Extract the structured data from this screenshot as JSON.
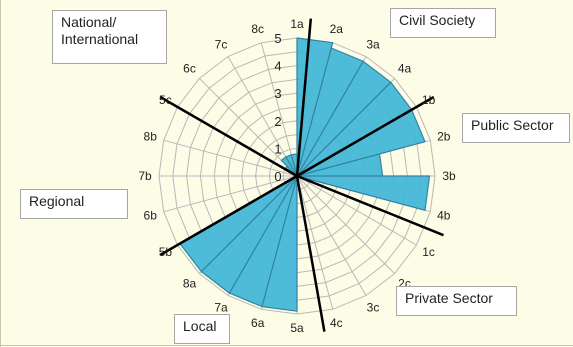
{
  "chart_data": {
    "type": "radar",
    "categories": [
      "1a",
      "2a",
      "3a",
      "4a",
      "1b",
      "2b",
      "3b",
      "4b",
      "1c",
      "2c",
      "3c",
      "4c",
      "5a",
      "6a",
      "7a",
      "8a",
      "5b",
      "6b",
      "7b",
      "8b",
      "5c",
      "6c",
      "7c",
      "8c"
    ],
    "values": [
      5,
      4.8,
      4.8,
      4.8,
      4.8,
      3.1,
      4.8,
      0,
      0,
      0,
      0,
      0,
      4.9,
      4.9,
      4.9,
      4.9,
      0,
      0,
      0,
      0,
      0.5,
      0.8,
      0.8,
      0.8
    ],
    "rlim": [
      0,
      5
    ],
    "ring_labels": [
      "0",
      "1",
      "2",
      "3",
      "4",
      "5"
    ],
    "grid": true,
    "fill_color": "#45b8d8",
    "stroke_color": "#2a7f9f",
    "sector_labels": {
      "civil": "Civil Society",
      "public": "Public Sector",
      "private": "Private Sector",
      "local": "Local",
      "regional": "Regional",
      "national": "National/\nInternational"
    }
  }
}
